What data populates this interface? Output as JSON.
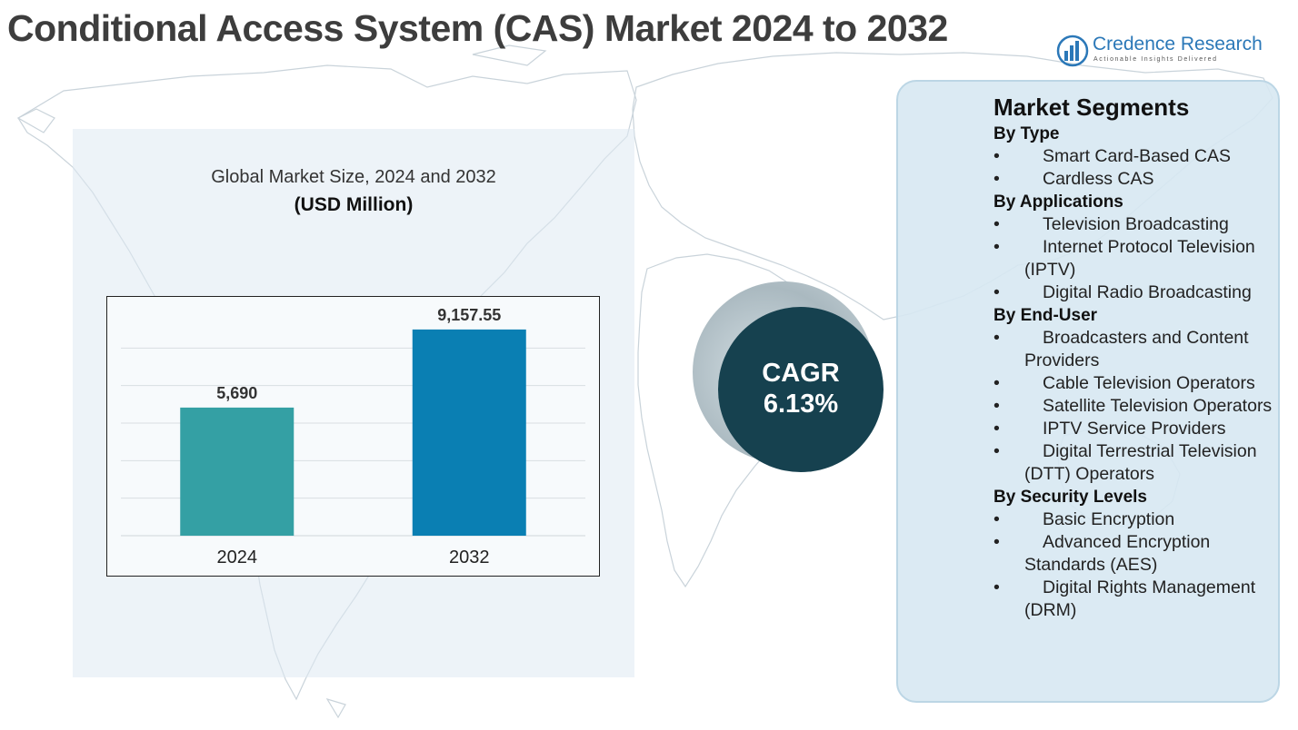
{
  "title": "Conditional Access System (CAS) Market 2024 to 2032",
  "logo": {
    "name": "Credence Research",
    "tagline": "Actionable Insights Delivered"
  },
  "chart_heading": {
    "title": "Global Market Size, 2024 and 2032",
    "subtitle": "(USD Million)"
  },
  "chart_data": {
    "type": "bar",
    "title": "Global Market Size, 2024 and 2032",
    "subtitle": "(USD Million)",
    "categories": [
      "2024",
      "2032"
    ],
    "values": [
      5690,
      9157.55
    ],
    "value_labels": [
      "5,690",
      "9,157.55"
    ],
    "colors": [
      "#34a0a4",
      "#0a7fb3"
    ],
    "xlabel": "",
    "ylabel": "",
    "ylim": [
      0,
      10000
    ],
    "grid": true
  },
  "cagr": {
    "label": "CAGR",
    "value": "6.13%"
  },
  "segments": {
    "title": "Market Segments",
    "groups": [
      {
        "heading": "By Type",
        "items": [
          "Smart Card-Based CAS",
          "Cardless CAS"
        ]
      },
      {
        "heading": "By Applications",
        "items": [
          "Television Broadcasting",
          "Internet Protocol Television (IPTV)",
          "Digital Radio Broadcasting"
        ]
      },
      {
        "heading": "By End-User",
        "items": [
          "Broadcasters and Content Providers",
          "Cable Television Operators",
          "Satellite Television Operators",
          "IPTV Service Providers",
          "Digital Terrestrial Television (DTT) Operators"
        ]
      },
      {
        "heading": "By Security Levels",
        "items": [
          "Basic Encryption",
          "Advanced Encryption Standards (AES)",
          "Digital Rights Management (DRM)"
        ]
      }
    ]
  }
}
